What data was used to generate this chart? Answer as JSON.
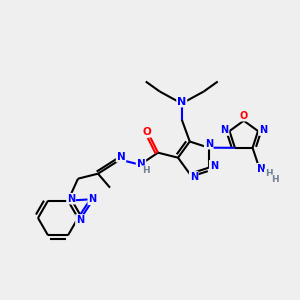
{
  "bg_color": "#efefef",
  "atom_colors": {
    "C": "#000000",
    "N": "#0000ff",
    "O": "#ff0000",
    "H": "#708090"
  },
  "bond_color": "#000000",
  "bond_width": 1.5
}
